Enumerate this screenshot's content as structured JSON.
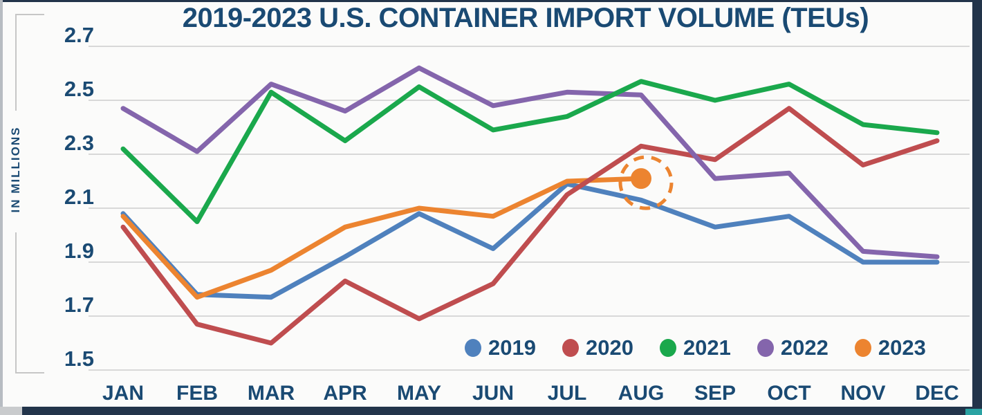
{
  "frame": {
    "border_color": "#22344a",
    "accent_color": "#2aa2a2"
  },
  "chart_data": {
    "type": "line",
    "title": "2019-2023 U.S. CONTAINER IMPORT VOLUME (TEUs)",
    "ylabel": "IN MILLIONS",
    "categories": [
      "JAN",
      "FEB",
      "MAR",
      "APR",
      "MAY",
      "JUN",
      "JUL",
      "AUG",
      "SEP",
      "OCT",
      "NOV",
      "DEC"
    ],
    "yticks": [
      "2.7",
      "2.5",
      "2.3",
      "2.1",
      "1.9",
      "1.7",
      "1.5"
    ],
    "ylim": [
      1.5,
      2.7
    ],
    "grid": true,
    "gridline_color": "#d8d8d8",
    "text_color": "#1a4a73",
    "legend_position": "bottom-right",
    "series": [
      {
        "name": "2019",
        "color": "#4f81bd",
        "values": [
          2.08,
          1.78,
          1.77,
          1.92,
          2.08,
          1.95,
          2.19,
          2.13,
          2.03,
          2.07,
          1.9,
          1.9
        ]
      },
      {
        "name": "2020",
        "color": "#bf4d4f",
        "values": [
          2.03,
          1.67,
          1.6,
          1.83,
          1.69,
          1.82,
          2.15,
          2.33,
          2.28,
          2.47,
          2.26,
          2.35
        ]
      },
      {
        "name": "2021",
        "color": "#1aa84c",
        "values": [
          2.32,
          2.05,
          2.53,
          2.35,
          2.55,
          2.39,
          2.44,
          2.57,
          2.5,
          2.56,
          2.41,
          2.38
        ]
      },
      {
        "name": "2022",
        "color": "#8465ac",
        "values": [
          2.47,
          2.31,
          2.56,
          2.46,
          2.62,
          2.48,
          2.53,
          2.52,
          2.21,
          2.23,
          1.94,
          1.92
        ]
      },
      {
        "name": "2023",
        "color": "#ec8430",
        "values": [
          2.07,
          1.77,
          1.87,
          2.03,
          2.1,
          2.07,
          2.2,
          2.21,
          null,
          null,
          null,
          null
        ]
      }
    ],
    "highlight": {
      "series": "2023",
      "category": "AUG",
      "value": 2.21,
      "style": "solid-dot-with-dashed-ring"
    }
  }
}
